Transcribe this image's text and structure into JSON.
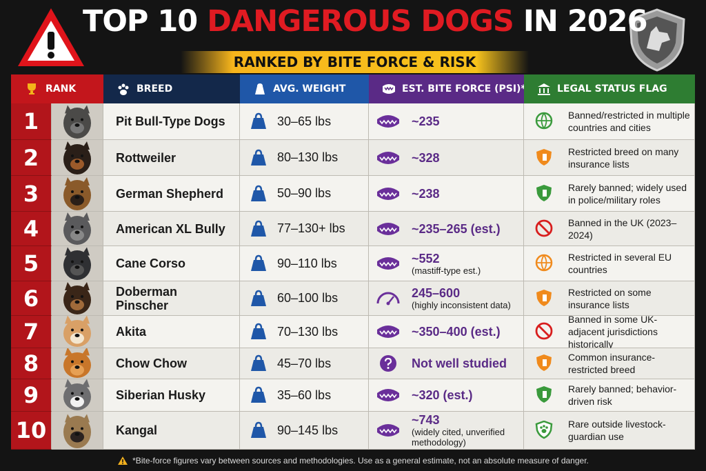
{
  "header": {
    "title_start": "TOP 10",
    "title_highlight": "DANGEROUS DOGS",
    "title_end": "IN 2026",
    "subtitle": "RANKED BY BITE FORCE & RISK"
  },
  "table": {
    "columns": [
      "RANK",
      "BREED",
      "AVG. WEIGHT",
      "EST. BITE FORCE (PSI)*",
      "LEGAL STATUS FLAG"
    ],
    "rows": [
      {
        "rank": 1,
        "breed": "Pit Bull-Type Dogs",
        "weight": "30–65 lbs",
        "bite_force": "~235",
        "legal_status": "Banned/restricted in multiple countries and cities"
      },
      {
        "rank": 2,
        "breed": "Rottweiler",
        "weight": "80–130 lbs",
        "bite_force": "~328",
        "legal_status": "Restricted breed on many insurance lists"
      },
      {
        "rank": 3,
        "breed": "German Shepherd",
        "weight": "50–90 lbs",
        "bite_force": "~238",
        "legal_status": "Rarely banned; widely used in police/military roles"
      },
      {
        "rank": 4,
        "breed": "American XL Bully",
        "weight": "77–130+ lbs",
        "bite_force": "~235–265 (est.)",
        "legal_status": "Banned in the UK (2023–2024)"
      },
      {
        "rank": 5,
        "breed": "Cane Corso",
        "weight": "90–110 lbs",
        "bite_force": "~552",
        "bite_note": "(mastiff-type est.)",
        "legal_status": "Restricted in several EU countries"
      },
      {
        "rank": 6,
        "breed": "Doberman Pinscher",
        "weight": "60–100 lbs",
        "bite_force": "245–600",
        "bite_note": "(highly inconsistent data)",
        "legal_status": "Restricted on some insurance lists"
      },
      {
        "rank": 7,
        "breed": "Akita",
        "weight": "70–130 lbs",
        "bite_force": "~350–400 (est.)",
        "legal_status": "Banned in some UK-adjacent jurisdictions historically"
      },
      {
        "rank": 8,
        "breed": "Chow Chow",
        "weight": "45–70 lbs",
        "bite_force": "Not well studied",
        "legal_status": "Common insurance-restricted breed"
      },
      {
        "rank": 9,
        "breed": "Siberian Husky",
        "weight": "35–60 lbs",
        "bite_force": "~320 (est.)",
        "legal_status": "Rarely banned; behavior-driven risk"
      },
      {
        "rank": 10,
        "breed": "Kangal",
        "weight": "90–145 lbs",
        "bite_force": "~743",
        "bite_note": "(widely cited, unverified methodology)",
        "legal_status": "Rare outside livestock-guardian use"
      }
    ]
  },
  "footer": {
    "note": "*Bite-force figures vary between sources and methodologies. Use as a general estimate, not an absolute measure of danger."
  }
}
